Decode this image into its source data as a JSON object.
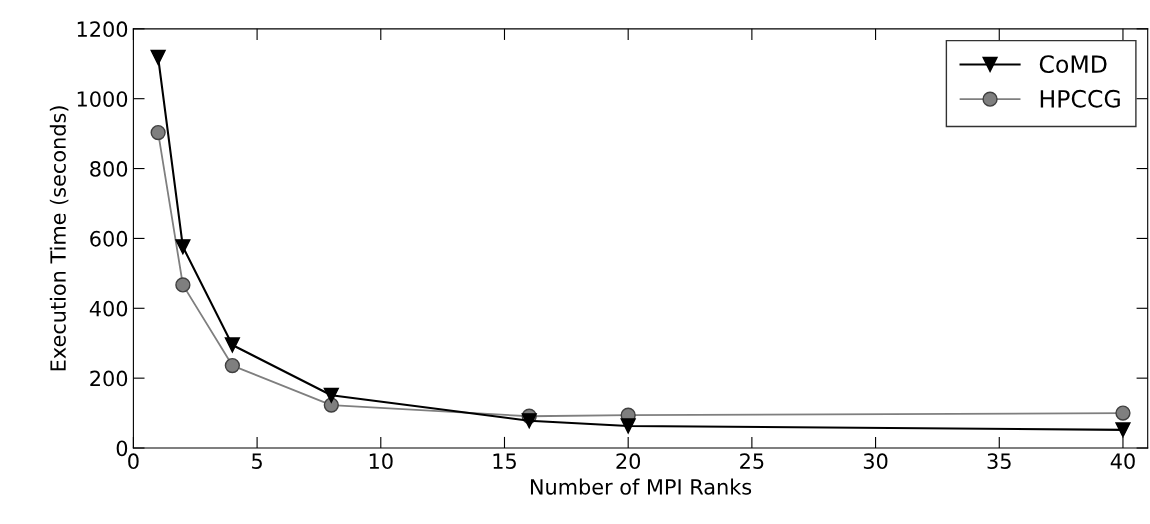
{
  "chart_data": {
    "type": "line",
    "xlabel": "Number of MPI Ranks",
    "ylabel": "Execution Time (seconds)",
    "x": [
      1,
      2,
      4,
      8,
      16,
      20,
      40
    ],
    "series": [
      {
        "name": "CoMD",
        "color": "#000000",
        "marker": "triangle",
        "values": [
          1118,
          576,
          295,
          151,
          78,
          63,
          52
        ]
      },
      {
        "name": "HPCCG",
        "color": "#7f7f7f",
        "marker": "circle",
        "values": [
          903,
          467,
          236,
          123,
          91,
          94,
          100
        ]
      }
    ],
    "xlim": [
      0,
      41
    ],
    "xticks": [
      0,
      5,
      10,
      15,
      20,
      25,
      30,
      35,
      40
    ],
    "ylim": [
      0,
      1200
    ],
    "yticks": [
      0,
      200,
      400,
      600,
      800,
      1000,
      1200
    ],
    "grid": false,
    "legend": "top right",
    "line_style": "solid"
  }
}
